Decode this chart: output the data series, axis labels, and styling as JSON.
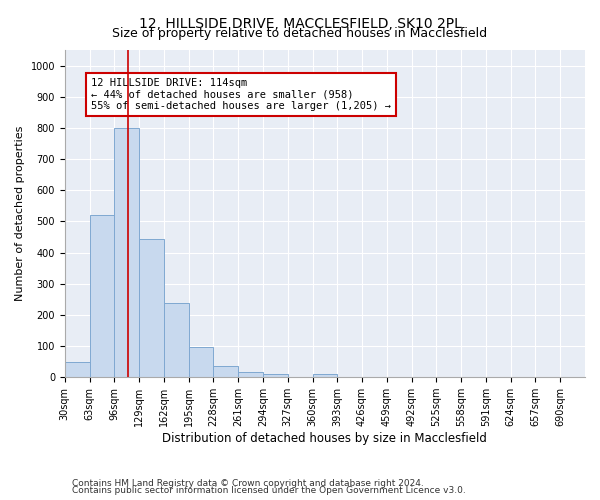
{
  "title1": "12, HILLSIDE DRIVE, MACCLESFIELD, SK10 2PL",
  "title2": "Size of property relative to detached houses in Macclesfield",
  "xlabel": "Distribution of detached houses by size in Macclesfield",
  "ylabel": "Number of detached properties",
  "bar_values": [
    50,
    520,
    800,
    445,
    238,
    97,
    35,
    18,
    10,
    0,
    10,
    0,
    0,
    0,
    0,
    0,
    0,
    0,
    0,
    0
  ],
  "bin_labels": [
    "30sqm",
    "63sqm",
    "96sqm",
    "129sqm",
    "162sqm",
    "195sqm",
    "228sqm",
    "261sqm",
    "294sqm",
    "327sqm",
    "360sqm",
    "393sqm",
    "426sqm",
    "459sqm",
    "492sqm",
    "525sqm",
    "558sqm",
    "591sqm",
    "624sqm",
    "657sqm",
    "690sqm"
  ],
  "bin_edges": [
    30,
    63,
    96,
    129,
    162,
    195,
    228,
    261,
    294,
    327,
    360,
    393,
    426,
    459,
    492,
    525,
    558,
    591,
    624,
    657,
    690
  ],
  "bin_width": 33,
  "bar_color": "#c8d9ee",
  "bar_edge_color": "#7fa8d1",
  "vline_x": 114,
  "vline_color": "#cc0000",
  "annotation_text": "12 HILLSIDE DRIVE: 114sqm\n← 44% of detached houses are smaller (958)\n55% of semi-detached houses are larger (1,205) →",
  "annotation_box_color": "#ffffff",
  "annotation_box_edge": "#cc0000",
  "ylim": [
    0,
    1050
  ],
  "yticks": [
    0,
    100,
    200,
    300,
    400,
    500,
    600,
    700,
    800,
    900,
    1000
  ],
  "footer1": "Contains HM Land Registry data © Crown copyright and database right 2024.",
  "footer2": "Contains public sector information licensed under the Open Government Licence v3.0.",
  "bg_color": "#ffffff",
  "plot_bg_color": "#e8edf5",
  "grid_color": "#ffffff",
  "title1_fontsize": 10,
  "title2_fontsize": 9,
  "xlabel_fontsize": 8.5,
  "ylabel_fontsize": 8,
  "tick_fontsize": 7,
  "annotation_fontsize": 7.5,
  "footer_fontsize": 6.5
}
